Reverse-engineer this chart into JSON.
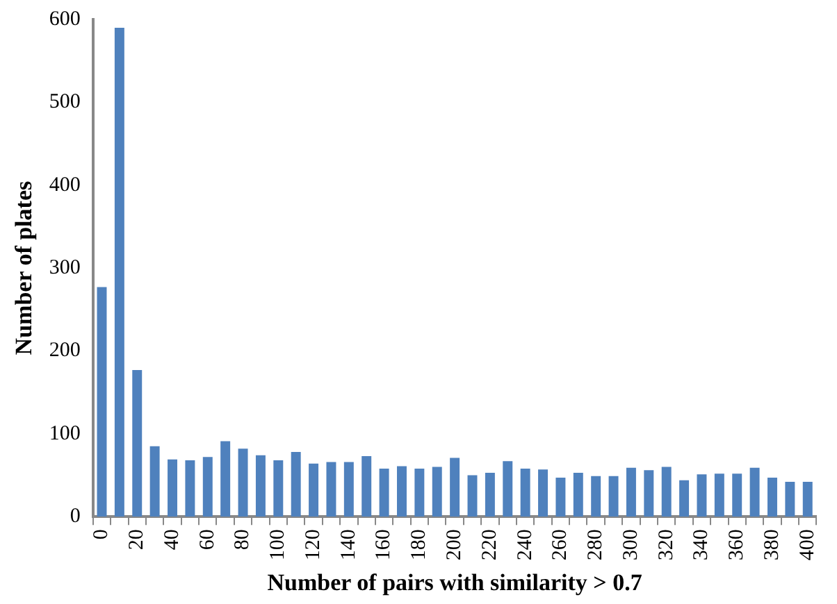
{
  "chart_data": {
    "type": "bar",
    "xlabel": "Number of pairs with similarity > 0.7",
    "ylabel": "Number of plates",
    "categories": [
      "0",
      null,
      "20",
      null,
      "40",
      null,
      "60",
      null,
      "80",
      null,
      "100",
      null,
      "120",
      null,
      "140",
      null,
      "160",
      null,
      "180",
      null,
      "200",
      null,
      "220",
      null,
      "240",
      null,
      "260",
      null,
      "280",
      null,
      "300",
      null,
      "320",
      null,
      "340",
      null,
      "360",
      null,
      "380",
      null,
      "400"
    ],
    "values": [
      277,
      590,
      177,
      85,
      69,
      68,
      72,
      91,
      82,
      74,
      68,
      78,
      64,
      66,
      66,
      73,
      58,
      61,
      58,
      60,
      71,
      50,
      53,
      67,
      58,
      57,
      47,
      53,
      49,
      49,
      59,
      56,
      60,
      44,
      51,
      52,
      52,
      59,
      47,
      42,
      42
    ],
    "color": "#4f81bd",
    "ylim": [
      0,
      600
    ],
    "yticks": [
      0,
      100,
      200,
      300,
      400,
      500,
      600
    ],
    "grid": false,
    "legend": false
  }
}
